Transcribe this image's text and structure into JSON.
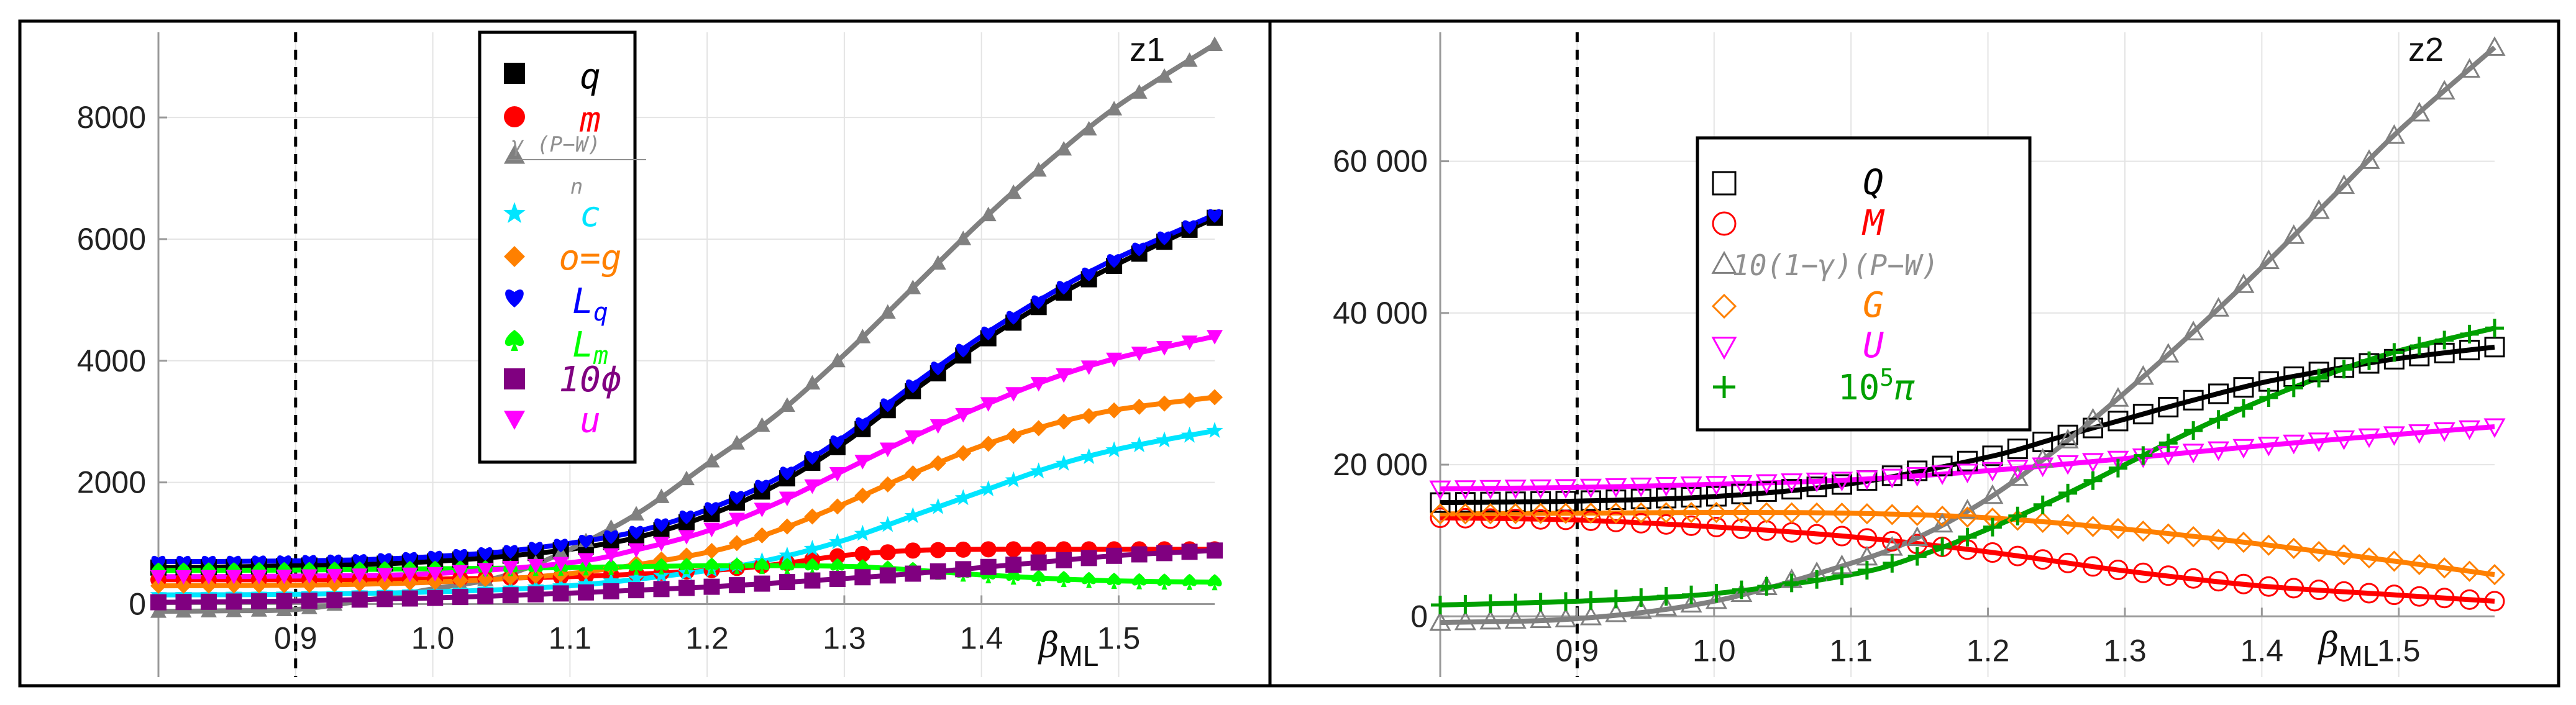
{
  "chart_data": [
    {
      "type": "line",
      "corner_label": "z1",
      "xlabel_main": "β",
      "xlabel_sub": "ML",
      "xlim": [
        0.8,
        1.57
      ],
      "ylim": [
        -1200,
        9400
      ],
      "xticks": [
        0.9,
        1.0,
        1.1,
        1.2,
        1.3,
        1.4,
        1.5
      ],
      "xtick_labels": [
        "0.9",
        "1.0",
        "1.1",
        "1.2",
        "1.3",
        "1.4",
        "1.5"
      ],
      "yticks": [
        0,
        2000,
        4000,
        6000,
        8000
      ],
      "ytick_labels": [
        "0",
        "2000",
        "4000",
        "6000",
        "8000"
      ],
      "vline_x": 0.9,
      "legend_position": "top-center",
      "series": [
        {
          "key": "q",
          "label": "q",
          "marker": "square",
          "color": "#000000",
          "x": [
            0.8,
            0.85,
            0.9,
            0.95,
            1.0,
            1.05,
            1.1,
            1.15,
            1.2,
            1.25,
            1.3,
            1.35,
            1.4,
            1.45,
            1.5,
            1.57
          ],
          "values": [
            600,
            610,
            630,
            650,
            700,
            780,
            900,
            1100,
            1450,
            1950,
            2650,
            3500,
            4300,
            5000,
            5600,
            6350
          ]
        },
        {
          "key": "m",
          "label": "m",
          "marker": "circle",
          "color": "#ff0000",
          "x": [
            0.8,
            0.9,
            1.0,
            1.1,
            1.2,
            1.25,
            1.3,
            1.35,
            1.4,
            1.45,
            1.5,
            1.57
          ],
          "values": [
            400,
            400,
            410,
            450,
            550,
            650,
            800,
            880,
            900,
            900,
            900,
            900
          ]
        },
        {
          "key": "gamma",
          "label": "γ (P−W)",
          "label_sub": "n",
          "marker": "triangle-up",
          "color": "#808080",
          "x": [
            0.8,
            0.85,
            0.9,
            0.95,
            1.0,
            1.05,
            1.1,
            1.15,
            1.2,
            1.25,
            1.3,
            1.35,
            1.4,
            1.45,
            1.5,
            1.57
          ],
          "values": [
            -120,
            -110,
            -90,
            60,
            250,
            450,
            900,
            1500,
            2300,
            3100,
            4100,
            5200,
            6300,
            7300,
            8200,
            9200
          ]
        },
        {
          "key": "c",
          "label": "c",
          "marker": "star",
          "color": "#00e5ff",
          "x": [
            0.8,
            0.9,
            1.0,
            1.1,
            1.2,
            1.25,
            1.3,
            1.35,
            1.4,
            1.45,
            1.5,
            1.57
          ],
          "values": [
            150,
            160,
            200,
            300,
            550,
            750,
            1050,
            1450,
            1850,
            2250,
            2550,
            2850
          ]
        },
        {
          "key": "og",
          "label": "o=g",
          "marker": "diamond",
          "color": "#ff8000",
          "x": [
            0.8,
            0.9,
            1.0,
            1.1,
            1.2,
            1.25,
            1.3,
            1.35,
            1.4,
            1.45,
            1.5,
            1.57
          ],
          "values": [
            300,
            310,
            360,
            500,
            850,
            1200,
            1650,
            2150,
            2600,
            2950,
            3200,
            3400
          ]
        },
        {
          "key": "Lq",
          "label": "L",
          "label_sub": "q",
          "marker": "heart",
          "color": "#0000ff",
          "x": [
            0.8,
            0.85,
            0.9,
            0.95,
            1.0,
            1.05,
            1.1,
            1.15,
            1.2,
            1.25,
            1.3,
            1.35,
            1.4,
            1.45,
            1.5,
            1.57
          ],
          "values": [
            700,
            700,
            710,
            730,
            780,
            860,
            1000,
            1200,
            1550,
            2050,
            2750,
            3600,
            4400,
            5100,
            5700,
            6400
          ]
        },
        {
          "key": "Lm",
          "label": "L",
          "label_sub": "m",
          "marker": "spade",
          "color": "#00ff00",
          "x": [
            0.8,
            0.9,
            1.0,
            1.1,
            1.2,
            1.3,
            1.35,
            1.4,
            1.45,
            1.5,
            1.57
          ],
          "values": [
            550,
            560,
            580,
            600,
            630,
            620,
            560,
            480,
            420,
            380,
            360
          ]
        },
        {
          "key": "phi",
          "label": "10ϕ",
          "marker": "square",
          "color": "#800080",
          "x": [
            0.8,
            0.9,
            1.0,
            1.1,
            1.2,
            1.3,
            1.35,
            1.4,
            1.45,
            1.5,
            1.57
          ],
          "values": [
            30,
            50,
            100,
            180,
            280,
            420,
            500,
            600,
            700,
            800,
            880
          ]
        },
        {
          "key": "u",
          "label": "u",
          "marker": "triangle-down",
          "color": "#ff00ff",
          "x": [
            0.8,
            0.9,
            1.0,
            1.1,
            1.15,
            1.2,
            1.25,
            1.3,
            1.35,
            1.4,
            1.45,
            1.5,
            1.57
          ],
          "values": [
            450,
            460,
            500,
            680,
            900,
            1200,
            1650,
            2200,
            2750,
            3250,
            3700,
            4050,
            4400
          ]
        }
      ]
    },
    {
      "type": "line",
      "corner_label": "z2",
      "xlabel_main": "β",
      "xlabel_sub": "ML",
      "xlim": [
        0.8,
        1.57
      ],
      "ylim": [
        -8000,
        77000
      ],
      "xticks": [
        0.9,
        1.0,
        1.1,
        1.2,
        1.3,
        1.4,
        1.5
      ],
      "xtick_labels": [
        "0.9",
        "1.0",
        "1.1",
        "1.2",
        "1.3",
        "1.4",
        "1.5"
      ],
      "yticks": [
        0,
        20000,
        40000,
        60000
      ],
      "ytick_labels": [
        "0",
        "20 000",
        "40 000",
        "60 000"
      ],
      "vline_x": 0.9,
      "legend_position": "top-center",
      "series": [
        {
          "key": "Q",
          "label": "Q",
          "marker": "open-square",
          "color": "#000000",
          "x": [
            0.8,
            0.9,
            1.0,
            1.1,
            1.2,
            1.25,
            1.3,
            1.35,
            1.4,
            1.45,
            1.5,
            1.57
          ],
          "values": [
            15000,
            15200,
            15800,
            17500,
            21000,
            23500,
            26000,
            28500,
            30800,
            32500,
            34000,
            35500
          ]
        },
        {
          "key": "M",
          "label": "M",
          "marker": "open-circle",
          "color": "#ff0000",
          "x": [
            0.8,
            0.9,
            1.0,
            1.1,
            1.2,
            1.3,
            1.4,
            1.5,
            1.57
          ],
          "values": [
            13000,
            12700,
            11800,
            10500,
            8500,
            6000,
            4000,
            2800,
            2000
          ]
        },
        {
          "key": "gammaPW",
          "label": "10(1−γ)(P−W)",
          "marker": "open-triangle-up",
          "color": "#808080",
          "x": [
            0.8,
            0.9,
            1.0,
            1.1,
            1.15,
            1.2,
            1.25,
            1.3,
            1.35,
            1.4,
            1.45,
            1.5,
            1.57
          ],
          "values": [
            -800,
            -300,
            2000,
            7000,
            10500,
            15500,
            22000,
            29500,
            37500,
            46000,
            55000,
            64000,
            75000
          ]
        },
        {
          "key": "G",
          "label": "G",
          "marker": "open-diamond",
          "color": "#ff8000",
          "x": [
            0.8,
            0.9,
            1.0,
            1.1,
            1.2,
            1.3,
            1.4,
            1.5,
            1.57
          ],
          "values": [
            13500,
            13600,
            13700,
            13600,
            13000,
            11500,
            9500,
            7200,
            5500
          ]
        },
        {
          "key": "U",
          "label": "U",
          "marker": "open-triangle-down",
          "color": "#ff00ff",
          "x": [
            0.8,
            0.9,
            1.0,
            1.1,
            1.2,
            1.3,
            1.4,
            1.5,
            1.57
          ],
          "values": [
            16800,
            17000,
            17400,
            18000,
            19200,
            20800,
            22500,
            24000,
            25000
          ]
        },
        {
          "key": "pi",
          "label": "10",
          "label_sup": "5",
          "label_tail": "π",
          "marker": "plus",
          "color": "#00a000",
          "x": [
            0.8,
            0.9,
            1.0,
            1.1,
            1.15,
            1.2,
            1.25,
            1.3,
            1.35,
            1.4,
            1.45,
            1.5,
            1.57
          ],
          "values": [
            1500,
            2000,
            3000,
            5500,
            8000,
            11500,
            15500,
            20000,
            24500,
            28500,
            32000,
            35000,
            38000
          ]
        }
      ]
    }
  ]
}
